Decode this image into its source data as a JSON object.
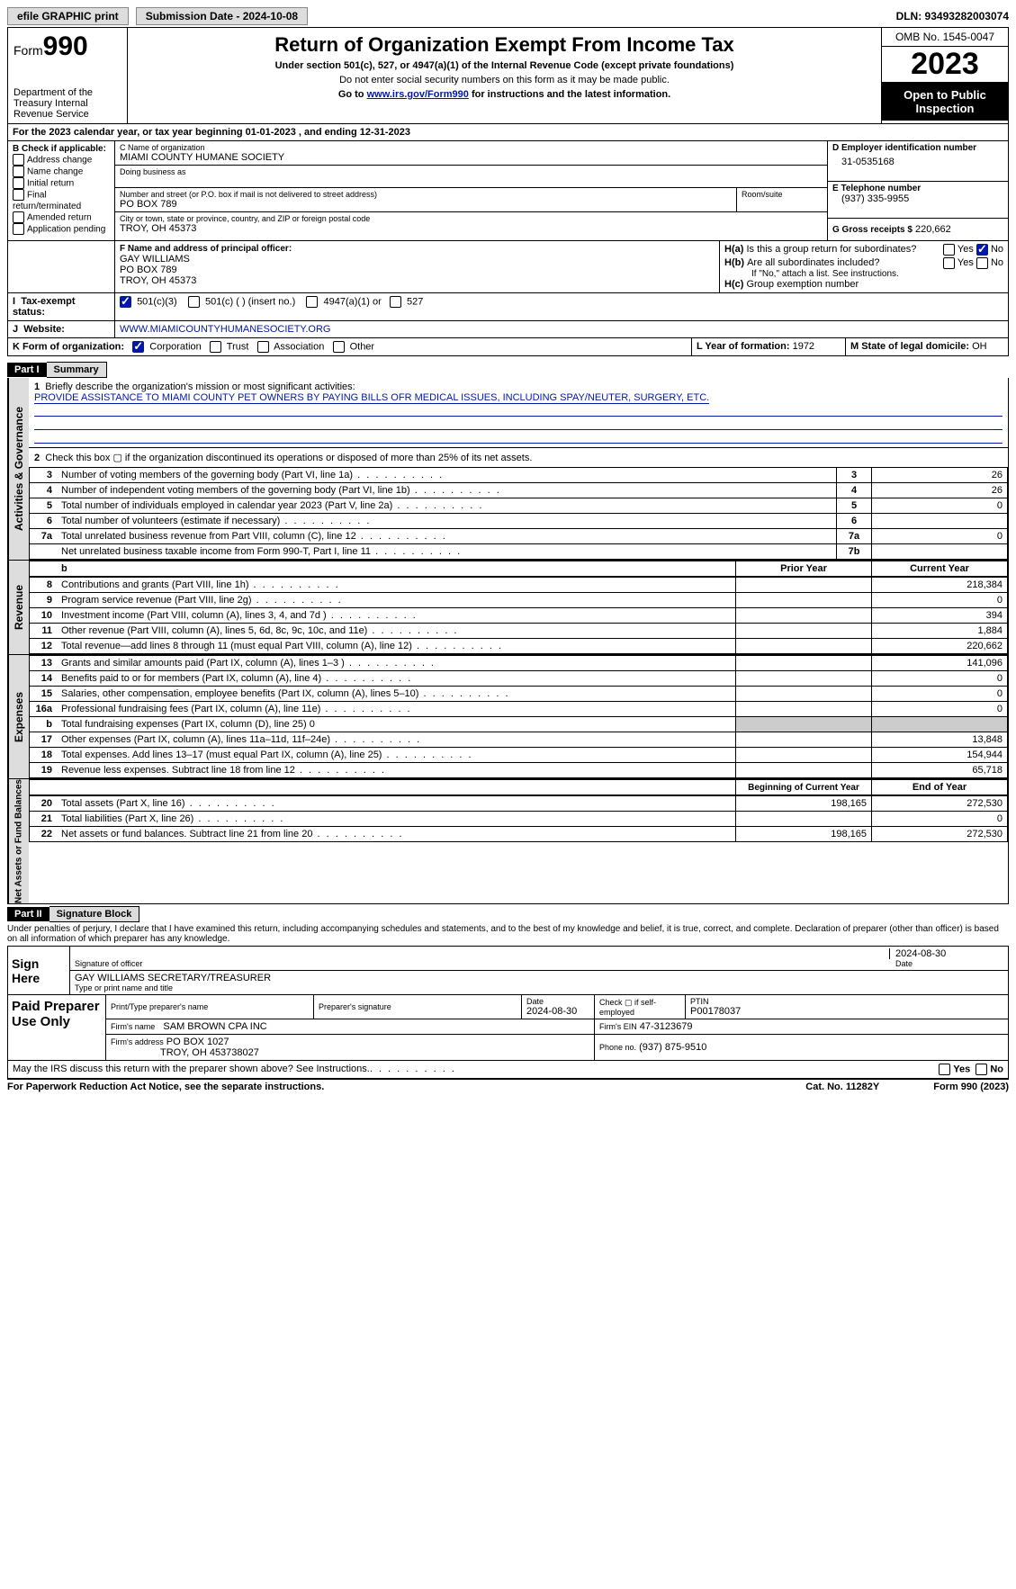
{
  "topbar": {
    "efile": "efile GRAPHIC print",
    "submission": "Submission Date - 2024-10-08",
    "dln": "DLN: 93493282003074"
  },
  "header": {
    "form_word": "Form",
    "form_num": "990",
    "dept": "Department of the Treasury\nInternal Revenue Service",
    "title": "Return of Organization Exempt From Income Tax",
    "sub1": "Under section 501(c), 527, or 4947(a)(1) of the Internal Revenue Code (except private foundations)",
    "sub2": "Do not enter social security numbers on this form as it may be made public.",
    "sub3_pre": "Go to ",
    "sub3_link": "www.irs.gov/Form990",
    "sub3_post": " for instructions and the latest information.",
    "omb": "OMB No. 1545-0047",
    "year": "2023",
    "open": "Open to Public Inspection"
  },
  "lineA": "For the 2023 calendar year, or tax year beginning 01-01-2023   , and ending 12-31-2023",
  "boxB": {
    "title": "B Check if applicable:",
    "items": [
      "Address change",
      "Name change",
      "Initial return",
      "Final return/terminated",
      "Amended return",
      "Application pending"
    ]
  },
  "boxC": {
    "label_name": "C Name of organization",
    "org": "MIAMI COUNTY HUMANE SOCIETY",
    "label_dba": "Doing business as",
    "label_addr": "Number and street (or P.O. box if mail is not delivered to street address)",
    "addr": "PO BOX 789",
    "label_room": "Room/suite",
    "label_city": "City or town, state or province, country, and ZIP or foreign postal code",
    "city": "TROY, OH  45373"
  },
  "boxD": {
    "label": "D Employer identification number",
    "val": "31-0535168"
  },
  "boxE": {
    "label": "E Telephone number",
    "val": "(937) 335-9955"
  },
  "boxG": {
    "label": "G Gross receipts $",
    "val": "220,662"
  },
  "boxF": {
    "label": "F  Name and address of principal officer:",
    "l1": "GAY WILLIAMS",
    "l2": "PO BOX 789",
    "l3": "TROY, OH  45373"
  },
  "boxH": {
    "a1": "H(a)",
    "a1txt": "Is this a group return for subordinates?",
    "b1": "H(b)",
    "b1txt": "Are all subordinates included?",
    "note": "If \"No,\" attach a list. See instructions.",
    "c1": "H(c)",
    "c1txt": "Group exemption number"
  },
  "taxexempt": {
    "label": "Tax-exempt status:",
    "o1": "501(c)(3)",
    "o2": "501(c) (  ) (insert no.)",
    "o3": "4947(a)(1) or",
    "o4": "527"
  },
  "boxJ": {
    "label": "Website:",
    "val": "WWW.MIAMICOUNTYHUMANESOCIETY.ORG"
  },
  "boxK": {
    "label": "K Form of organization:",
    "o1": "Corporation",
    "o2": "Trust",
    "o3": "Association",
    "o4": "Other"
  },
  "boxL": {
    "label": "L Year of formation:",
    "val": "1972"
  },
  "boxM": {
    "label": "M State of legal domicile:",
    "val": "OH"
  },
  "part1": {
    "tag": "Part I",
    "title": "Summary"
  },
  "summary": {
    "q1": "Briefly describe the organization's mission or most significant activities:",
    "q1val": "PROVIDE ASSISTANCE TO MIAMI COUNTY PET OWNERS BY PAYING BILLS OFR MEDICAL ISSUES, INCLUDING SPAY/NEUTER, SURGERY, ETC.",
    "q2": "Check this box ▢ if the organization discontinued its operations or disposed of more than 25% of its net assets.",
    "sections": {
      "gov": "Activities & Governance",
      "rev": "Revenue",
      "exp": "Expenses",
      "net": "Net Assets or Fund Balances"
    },
    "headers": {
      "prior": "Prior Year",
      "curr": "Current Year",
      "begin": "Beginning of Current Year",
      "end": "End of Year"
    },
    "gov_lines": [
      {
        "n": "3",
        "t": "Number of voting members of the governing body (Part VI, line 1a)",
        "box": "3",
        "v": "26"
      },
      {
        "n": "4",
        "t": "Number of independent voting members of the governing body (Part VI, line 1b)",
        "box": "4",
        "v": "26"
      },
      {
        "n": "5",
        "t": "Total number of individuals employed in calendar year 2023 (Part V, line 2a)",
        "box": "5",
        "v": "0"
      },
      {
        "n": "6",
        "t": "Total number of volunteers (estimate if necessary)",
        "box": "6",
        "v": ""
      },
      {
        "n": "7a",
        "t": "Total unrelated business revenue from Part VIII, column (C), line 12",
        "box": "7a",
        "v": "0"
      },
      {
        "n": "",
        "t": "Net unrelated business taxable income from Form 990-T, Part I, line 11",
        "box": "7b",
        "v": ""
      }
    ],
    "rev_lines": [
      {
        "n": "8",
        "t": "Contributions and grants (Part VIII, line 1h)",
        "p": "",
        "c": "218,384"
      },
      {
        "n": "9",
        "t": "Program service revenue (Part VIII, line 2g)",
        "p": "",
        "c": "0"
      },
      {
        "n": "10",
        "t": "Investment income (Part VIII, column (A), lines 3, 4, and 7d )",
        "p": "",
        "c": "394"
      },
      {
        "n": "11",
        "t": "Other revenue (Part VIII, column (A), lines 5, 6d, 8c, 9c, 10c, and 11e)",
        "p": "",
        "c": "1,884"
      },
      {
        "n": "12",
        "t": "Total revenue—add lines 8 through 11 (must equal Part VIII, column (A), line 12)",
        "p": "",
        "c": "220,662"
      }
    ],
    "exp_lines": [
      {
        "n": "13",
        "t": "Grants and similar amounts paid (Part IX, column (A), lines 1–3 )",
        "p": "",
        "c": "141,096"
      },
      {
        "n": "14",
        "t": "Benefits paid to or for members (Part IX, column (A), line 4)",
        "p": "",
        "c": "0"
      },
      {
        "n": "15",
        "t": "Salaries, other compensation, employee benefits (Part IX, column (A), lines 5–10)",
        "p": "",
        "c": "0"
      },
      {
        "n": "16a",
        "t": "Professional fundraising fees (Part IX, column (A), line 11e)",
        "p": "",
        "c": "0"
      },
      {
        "n": "b",
        "t": "Total fundraising expenses (Part IX, column (D), line 25) 0",
        "p": "shade",
        "c": "shade"
      },
      {
        "n": "17",
        "t": "Other expenses (Part IX, column (A), lines 11a–11d, 11f–24e)",
        "p": "",
        "c": "13,848"
      },
      {
        "n": "18",
        "t": "Total expenses. Add lines 13–17 (must equal Part IX, column (A), line 25)",
        "p": "",
        "c": "154,944"
      },
      {
        "n": "19",
        "t": "Revenue less expenses. Subtract line 18 from line 12",
        "p": "",
        "c": "65,718"
      }
    ],
    "net_lines": [
      {
        "n": "20",
        "t": "Total assets (Part X, line 16)",
        "p": "198,165",
        "c": "272,530"
      },
      {
        "n": "21",
        "t": "Total liabilities (Part X, line 26)",
        "p": "",
        "c": "0"
      },
      {
        "n": "22",
        "t": "Net assets or fund balances. Subtract line 21 from line 20",
        "p": "198,165",
        "c": "272,530"
      }
    ]
  },
  "part2": {
    "tag": "Part II",
    "title": "Signature Block"
  },
  "sigblock": {
    "decl": "Under penalties of perjury, I declare that I have examined this return, including accompanying schedules and statements, and to the best of my knowledge and belief, it is true, correct, and complete. Declaration of preparer (other than officer) is based on all information of which preparer has any knowledge.",
    "sign_here": "Sign Here",
    "sig_date": "2024-08-30",
    "sig_label": "Signature of officer",
    "officer": "GAY WILLIAMS  SECRETARY/TREASURER",
    "type_label": "Type or print name and title",
    "date_label": "Date",
    "paid": "Paid Preparer Use Only",
    "pp_name_label": "Print/Type preparer's name",
    "pp_sig_label": "Preparer's signature",
    "pp_date": "2024-08-30",
    "pp_check": "Check ▢ if self-employed",
    "ptin_label": "PTIN",
    "ptin": "P00178037",
    "firm_name_label": "Firm's name",
    "firm_name": "SAM BROWN CPA INC",
    "firm_ein_label": "Firm's EIN",
    "firm_ein": "47-3123679",
    "firm_addr_label": "Firm's address",
    "firm_addr1": "PO BOX 1027",
    "firm_addr2": "TROY, OH  453738027",
    "phone_label": "Phone no.",
    "phone": "(937) 875-9510",
    "discuss": "May the IRS discuss this return with the preparer shown above? See Instructions.",
    "yes": "Yes",
    "no": "No"
  },
  "footer": {
    "pra": "For Paperwork Reduction Act Notice, see the separate instructions.",
    "cat": "Cat. No. 11282Y",
    "form": "Form 990 (2023)"
  }
}
